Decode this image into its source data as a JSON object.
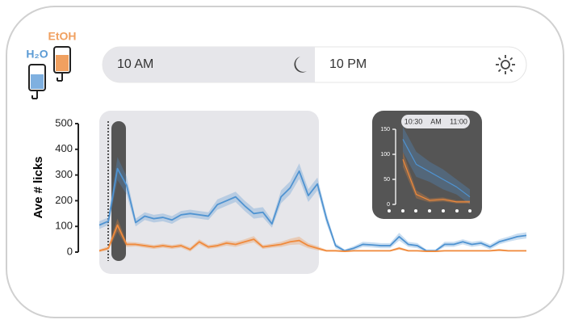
{
  "chart_data": [
    {
      "type": "line",
      "ylabel": "Ave # licks",
      "ylim": [
        0,
        500
      ],
      "yticks": [
        0,
        100,
        200,
        300,
        400,
        500
      ],
      "night_label": "10 AM",
      "day_label": "10 PM",
      "series": [
        {
          "name": "H₂O",
          "color": "#4f93d1",
          "values": [
            105,
            120,
            325,
            260,
            115,
            140,
            130,
            135,
            125,
            145,
            150,
            145,
            140,
            185,
            200,
            215,
            180,
            150,
            155,
            110,
            215,
            250,
            315,
            220,
            265,
            130,
            25,
            5,
            15,
            30,
            28,
            25,
            25,
            60,
            30,
            25,
            5,
            5,
            30,
            30,
            40,
            30,
            35,
            20,
            40,
            50,
            60,
            65
          ],
          "errors": [
            15,
            15,
            45,
            35,
            15,
            15,
            15,
            15,
            15,
            15,
            15,
            15,
            15,
            20,
            20,
            20,
            20,
            20,
            20,
            15,
            25,
            25,
            30,
            25,
            25,
            20,
            10,
            5,
            8,
            10,
            10,
            10,
            10,
            15,
            10,
            10,
            5,
            5,
            10,
            10,
            10,
            10,
            10,
            10,
            10,
            10,
            12,
            12
          ]
        },
        {
          "name": "EtOH",
          "color": "#f08a3c",
          "values": [
            5,
            15,
            105,
            30,
            30,
            25,
            20,
            25,
            20,
            25,
            10,
            40,
            20,
            25,
            35,
            30,
            40,
            50,
            20,
            25,
            30,
            40,
            45,
            25,
            15,
            5,
            5,
            3,
            5,
            5,
            5,
            5,
            5,
            15,
            5,
            5,
            3,
            3,
            5,
            5,
            5,
            5,
            5,
            5,
            8,
            5,
            5,
            5
          ],
          "errors": [
            5,
            8,
            25,
            10,
            8,
            8,
            8,
            8,
            8,
            8,
            8,
            10,
            8,
            8,
            10,
            10,
            10,
            12,
            8,
            8,
            10,
            12,
            15,
            10,
            8,
            4,
            4,
            3,
            3,
            3,
            3,
            3,
            3,
            6,
            3,
            3,
            2,
            2,
            3,
            3,
            3,
            3,
            3,
            3,
            4,
            3,
            3,
            3
          ]
        }
      ]
    },
    {
      "type": "line",
      "ylim": [
        0,
        150
      ],
      "yticks": [
        0,
        50,
        100,
        150
      ],
      "time_labels": [
        "10:30",
        "AM",
        "11:00"
      ],
      "series": [
        {
          "name": "H₂O",
          "color": "#4f93d1",
          "values": [
            130,
            80,
            65,
            50,
            35,
            15
          ],
          "errors": [
            25,
            25,
            20,
            20,
            15,
            15
          ]
        },
        {
          "name": "EtOH",
          "color": "#f08a3c",
          "values": [
            90,
            20,
            8,
            10,
            5,
            5
          ],
          "errors": [
            15,
            8,
            4,
            4,
            3,
            3
          ]
        }
      ]
    }
  ]
}
